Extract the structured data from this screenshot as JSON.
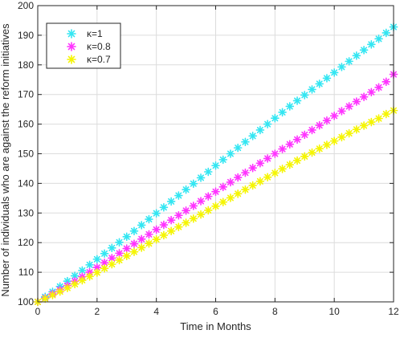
{
  "chart_data": {
    "type": "scatter",
    "xlabel": "Time in Months",
    "ylabel": "Number of individuals who are against the reform initiatives",
    "xlim": [
      0,
      12
    ],
    "ylim": [
      100,
      200
    ],
    "xticks": [
      0,
      2,
      4,
      6,
      8,
      10,
      12
    ],
    "yticks": [
      100,
      110,
      120,
      130,
      140,
      150,
      160,
      170,
      180,
      190,
      200
    ],
    "grid": true,
    "legend_position": "top-left",
    "marker": "asterisk",
    "series": [
      {
        "name": "κ=1",
        "color": "#33e6f2",
        "x": [
          0,
          0.25,
          0.5,
          0.75,
          1,
          1.25,
          1.5,
          1.75,
          2,
          2.25,
          2.5,
          2.75,
          3,
          3.25,
          3.5,
          3.75,
          4,
          4.25,
          4.5,
          4.75,
          5,
          5.25,
          5.5,
          5.75,
          6,
          6.25,
          6.5,
          6.75,
          7,
          7.25,
          7.5,
          7.75,
          8,
          8.25,
          8.5,
          8.75,
          9,
          9.25,
          9.5,
          9.75,
          10,
          10.25,
          10.5,
          10.75,
          11,
          11.25,
          11.5,
          11.75,
          12
        ],
        "y": [
          100,
          101.7,
          103.4,
          105.2,
          107,
          108.8,
          110.6,
          112.5,
          114.4,
          116.3,
          118.2,
          120.1,
          122,
          123.9,
          125.9,
          127.9,
          129.9,
          131.9,
          133.9,
          135.9,
          137.9,
          139.9,
          141.9,
          143.9,
          146,
          148,
          150,
          152,
          154,
          156,
          158,
          160,
          162,
          164,
          166,
          167.9,
          169.8,
          171.7,
          173.6,
          175.5,
          177.4,
          179.3,
          181.2,
          183.1,
          185,
          186.9,
          188.8,
          190.8,
          192.8
        ]
      },
      {
        "name": "κ=0.8",
        "color": "#ff33ff",
        "x": [
          0,
          0.25,
          0.5,
          0.75,
          1,
          1.25,
          1.5,
          1.75,
          2,
          2.25,
          2.5,
          2.75,
          3,
          3.25,
          3.5,
          3.75,
          4,
          4.25,
          4.5,
          4.75,
          5,
          5.25,
          5.5,
          5.75,
          6,
          6.25,
          6.5,
          6.75,
          7,
          7.25,
          7.5,
          7.75,
          8,
          8.25,
          8.5,
          8.75,
          9,
          9.25,
          9.5,
          9.75,
          10,
          10.25,
          10.5,
          10.75,
          11,
          11.25,
          11.5,
          11.75,
          12
        ],
        "y": [
          100,
          101.3,
          102.7,
          104.1,
          105.5,
          107,
          108.5,
          110,
          111.6,
          113.2,
          114.8,
          116.4,
          118,
          119.6,
          121.2,
          122.8,
          124.4,
          126,
          127.6,
          129.2,
          130.8,
          132.4,
          134,
          135.6,
          137.2,
          138.8,
          140.4,
          142,
          143.6,
          145.2,
          146.8,
          148.4,
          150,
          151.6,
          153.2,
          154.8,
          156.4,
          158,
          159.6,
          161.2,
          162.8,
          164.4,
          166,
          167.6,
          169.2,
          170.8,
          172.4,
          174.3,
          176.8
        ]
      },
      {
        "name": "κ=0.7",
        "color": "#f5f500",
        "x": [
          0,
          0.25,
          0.5,
          0.75,
          1,
          1.25,
          1.5,
          1.75,
          2,
          2.25,
          2.5,
          2.75,
          3,
          3.25,
          3.5,
          3.75,
          4,
          4.25,
          4.5,
          4.75,
          5,
          5.25,
          5.5,
          5.75,
          6,
          6.25,
          6.5,
          6.75,
          7,
          7.25,
          7.5,
          7.75,
          8,
          8.25,
          8.5,
          8.75,
          9,
          9.25,
          9.5,
          9.75,
          10,
          10.25,
          10.5,
          10.75,
          11,
          11.25,
          11.5,
          11.75,
          12
        ],
        "y": [
          100,
          101.1,
          102.3,
          103.5,
          104.7,
          106,
          107.3,
          108.6,
          109.9,
          111.3,
          112.7,
          114.1,
          115.5,
          116.9,
          118.3,
          119.7,
          121.1,
          122.5,
          123.9,
          125.3,
          126.7,
          128.1,
          129.5,
          130.9,
          132.3,
          133.7,
          135.1,
          136.5,
          137.9,
          139.3,
          140.7,
          142.1,
          143.5,
          144.9,
          146.3,
          147.7,
          149.1,
          150.4,
          151.7,
          153,
          154.3,
          155.6,
          156.9,
          158.2,
          159.5,
          160.7,
          161.9,
          163.4,
          164.6
        ]
      }
    ]
  }
}
